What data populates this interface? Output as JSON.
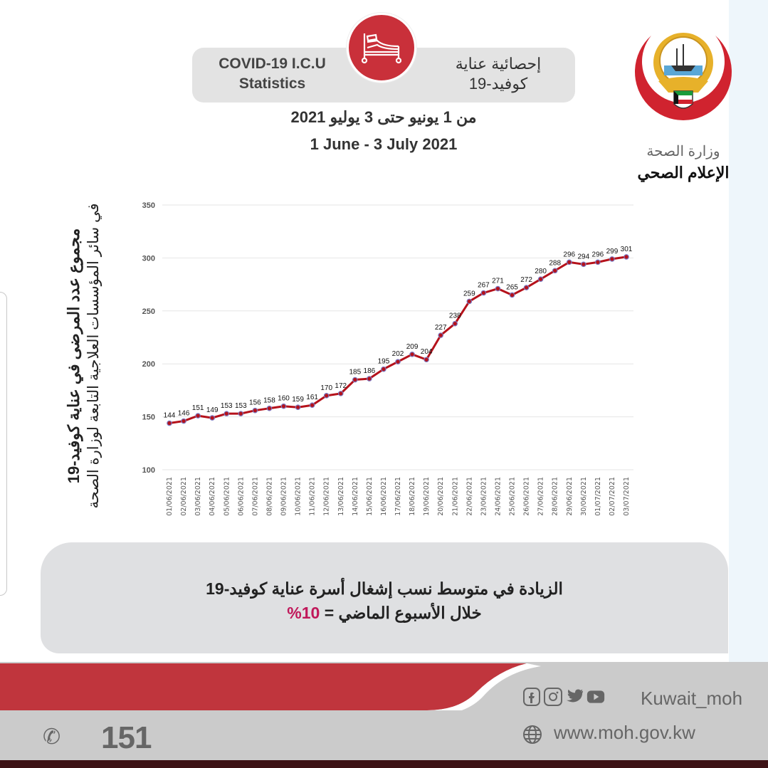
{
  "header": {
    "title_en_line1": "COVID-19 I.C.U",
    "title_en_line2": "Statistics",
    "title_ar_line1": "إحصائية عناية",
    "title_ar_line2": "كوفيد-19",
    "date_ar": "من 1 يونيو حتى 3 يوليو 2021",
    "date_en": "1 June - 3 July 2021",
    "icon": "hospital-bed-icon"
  },
  "branding": {
    "ministry": "وزارة الصحة",
    "department": "الإعلام الصحي",
    "logo": "kuwait-emblem-logo"
  },
  "y_axis_title": {
    "line1": "مجموع عدد المرضى في عناية كوفيد-19",
    "line2": "في سائر المؤسسات العلاجية التابعة لوزارة الصحة"
  },
  "note": {
    "line1": "الزيادة في متوسط نسب إشغال أسرة عناية كوفيد-19",
    "line2_prefix": "خلال الأسبوع الماضي = ",
    "value": "10%"
  },
  "footer": {
    "hotline": "151",
    "social_handle": "Kuwait_moh",
    "website": "www.moh.gov.kw",
    "social_icons": [
      "facebook-icon",
      "instagram-icon",
      "twitter-icon",
      "youtube-icon"
    ]
  },
  "colors": {
    "brand_red": "#c9303a",
    "line": "#b5121b",
    "marker": "#7b79c2",
    "highlight": "#c0185a"
  },
  "chart_data": {
    "type": "line",
    "title": "",
    "xlabel": "",
    "ylabel": "مجموع عدد المرضى في عناية كوفيد-19 في سائر المؤسسات العلاجية التابعة لوزارة الصحة",
    "ylim": [
      100,
      350
    ],
    "yticks": [
      100,
      150,
      200,
      250,
      300,
      350
    ],
    "grid": true,
    "legend": "none",
    "categories": [
      "01/06/2021",
      "02/06/2021",
      "03/06/2021",
      "04/06/2021",
      "05/06/2021",
      "06/06/2021",
      "07/06/2021",
      "08/06/2021",
      "09/06/2021",
      "10/06/2021",
      "11/06/2021",
      "12/06/2021",
      "13/06/2021",
      "14/06/2021",
      "15/06/2021",
      "16/06/2021",
      "17/06/2021",
      "18/06/2021",
      "19/06/2021",
      "20/06/2021",
      "21/06/2021",
      "22/06/2021",
      "23/06/2021",
      "24/06/2021",
      "25/06/2021",
      "26/06/2021",
      "27/06/2021",
      "28/06/2021",
      "29/06/2021",
      "30/06/2021",
      "01/07/2021",
      "02/07/2021",
      "03/07/2021"
    ],
    "values": [
      144,
      146,
      151,
      149,
      153,
      153,
      156,
      158,
      160,
      159,
      161,
      170,
      172,
      185,
      186,
      195,
      202,
      209,
      204,
      227,
      238,
      259,
      267,
      271,
      265,
      272,
      280,
      288,
      296,
      294,
      296,
      299,
      301
    ]
  }
}
